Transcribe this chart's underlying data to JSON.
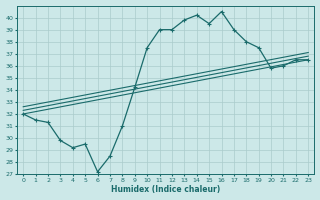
{
  "xlabel": "Humidex (Indice chaleur)",
  "bg_color": "#cce8e8",
  "grid_color": "#b0d0d0",
  "line_color": "#1a6b6b",
  "xlim": [
    -0.5,
    23.5
  ],
  "ylim": [
    27,
    41
  ],
  "yticks": [
    27,
    28,
    29,
    30,
    31,
    32,
    33,
    34,
    35,
    36,
    37,
    38,
    39,
    40
  ],
  "xticks": [
    0,
    1,
    2,
    3,
    4,
    5,
    6,
    7,
    8,
    9,
    10,
    11,
    12,
    13,
    14,
    15,
    16,
    17,
    18,
    19,
    20,
    21,
    22,
    23
  ],
  "series1_x": [
    0,
    1,
    2,
    3,
    4,
    5,
    6,
    7,
    8,
    9,
    10,
    11,
    12,
    13,
    14,
    15,
    16,
    17,
    18,
    19,
    20,
    21,
    22,
    23
  ],
  "series1_y": [
    32.0,
    31.5,
    31.3,
    29.8,
    29.2,
    29.5,
    27.2,
    28.5,
    31.0,
    34.2,
    37.5,
    39.0,
    39.0,
    39.8,
    40.2,
    39.5,
    40.5,
    39.0,
    38.0,
    37.5,
    35.8,
    36.0,
    36.5,
    36.5
  ],
  "series2_x": [
    0,
    23
  ],
  "series2_y": [
    32.0,
    36.5
  ],
  "series3_x": [
    0,
    23
  ],
  "series3_y": [
    32.3,
    36.8
  ],
  "series4_x": [
    0,
    23
  ],
  "series4_y": [
    32.6,
    37.1
  ]
}
